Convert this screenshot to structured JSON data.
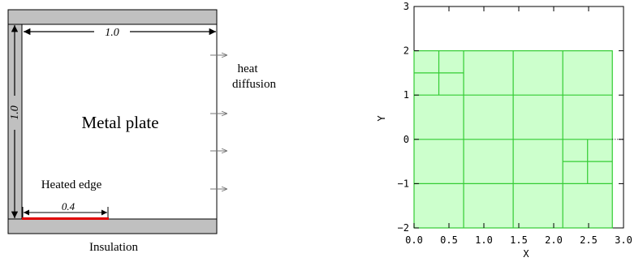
{
  "left_diagram": {
    "plate_label": "Metal plate",
    "width_label": "1.0",
    "height_label": "1.0",
    "heated_edge_label": "Heated edge",
    "heated_length_label": "0.4",
    "heat_label_line1": "heat",
    "heat_label_line2": "diffusion",
    "insulation_label": "Insulation",
    "colors": {
      "insulation": "#c0c0c0",
      "heated_edge": "#e00000",
      "line": "#000000"
    }
  },
  "chart_data": {
    "type": "diagram",
    "xlabel": "X",
    "ylabel": "Y",
    "xlim": [
      0.0,
      3.0
    ],
    "ylim": [
      -2,
      3
    ],
    "xticks": [
      0.0,
      0.5,
      1.0,
      1.5,
      2.0,
      2.5,
      3.0
    ],
    "xtick_labels": [
      "0.0",
      "0.5",
      "1.0",
      "1.5",
      "2.0",
      "2.5",
      "3.0"
    ],
    "yticks": [
      -2,
      -1,
      0,
      1,
      2,
      3
    ],
    "ytick_labels": [
      "−2",
      "−1",
      "0",
      "1",
      "2",
      "3"
    ],
    "grid": false,
    "fill_color": "#ccffcc",
    "line_color": "#33cc33",
    "domain_rect": [
      0.0,
      -2.0,
      2.84,
      2.0
    ],
    "v_lines": [
      [
        0.71,
        -2.0,
        2.0
      ],
      [
        1.42,
        -2.0,
        2.0
      ],
      [
        2.13,
        -2.0,
        2.0
      ],
      [
        0.355,
        1.0,
        2.0
      ],
      [
        2.485,
        -1.0,
        0.0
      ]
    ],
    "h_lines": [
      [
        -1.0,
        0.0,
        2.84
      ],
      [
        0.0,
        0.0,
        2.84
      ],
      [
        1.0,
        0.0,
        2.84
      ],
      [
        1.5,
        0.0,
        0.71
      ],
      [
        -0.5,
        2.13,
        2.84
      ]
    ],
    "dotted_line": [
      2.84,
      3.0,
      0.0
    ]
  }
}
